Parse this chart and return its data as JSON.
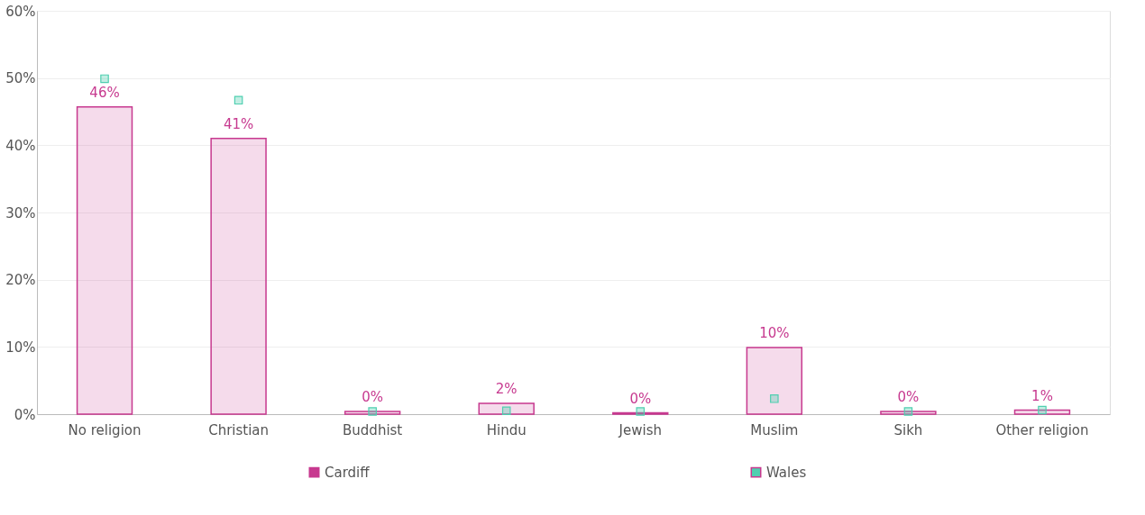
{
  "chart_data": {
    "type": "bar",
    "categories": [
      "No religion",
      "Christian",
      "Buddhist",
      "Hindu",
      "Jewish",
      "Muslim",
      "Sikh",
      "Other religion"
    ],
    "series": [
      {
        "name": "Cardiff",
        "color": "#c7398f",
        "values": [
          45.7,
          41.0,
          0.4,
          1.6,
          0.2,
          9.9,
          0.4,
          0.6
        ],
        "value_labels": [
          "46%",
          "41%",
          "0%",
          "2%",
          "0%",
          "10%",
          "0%",
          "1%"
        ]
      },
      {
        "name": "Wales",
        "type": "scatter",
        "marker": "square",
        "color": "#4fcfb0",
        "values": [
          49.9,
          46.7,
          0.4,
          0.5,
          0.4,
          2.3,
          0.4,
          0.6
        ]
      }
    ],
    "ylim": [
      0,
      60
    ],
    "yticks": [
      {
        "value": 0,
        "label": "0%"
      },
      {
        "value": 10,
        "label": "10%"
      },
      {
        "value": 20,
        "label": "20%"
      },
      {
        "value": 30,
        "label": "30%"
      },
      {
        "value": 40,
        "label": "40%"
      },
      {
        "value": 50,
        "label": "50%"
      },
      {
        "value": 60,
        "label": "60%"
      }
    ],
    "grid": "y",
    "legend": "bottom"
  }
}
